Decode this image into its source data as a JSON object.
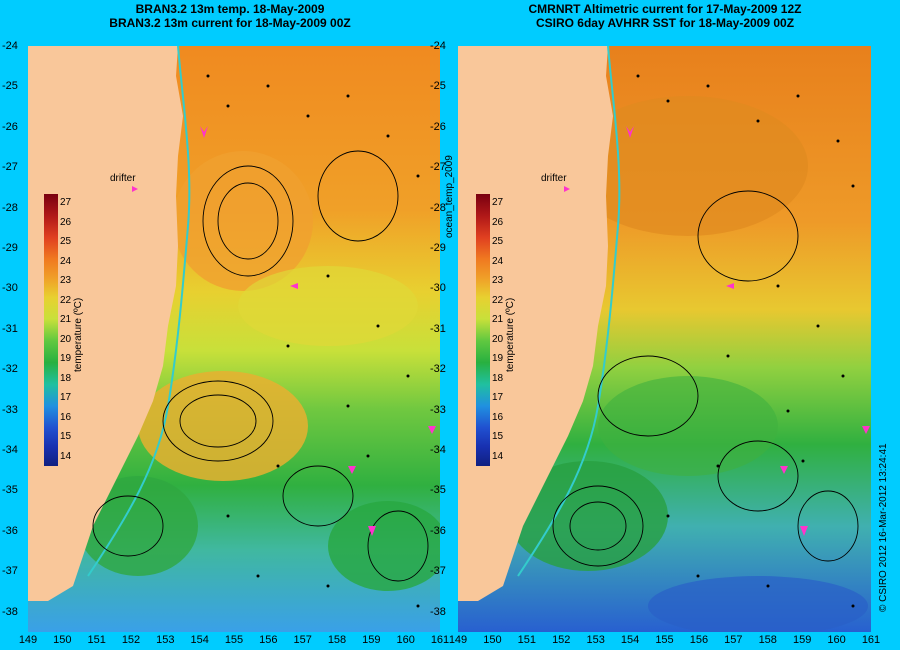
{
  "left_panel": {
    "title_line1": "BRAN3.2 13m temp. 18-May-2009",
    "title_line2": "BRAN3.2 13m current for 18-May-2009 00Z",
    "drifter_label": "drifter"
  },
  "right_panel": {
    "title_line1": "CMRNRT Altimetric current for 17-May-2009 12Z",
    "title_line2": "CSIRO 6day AVHRR SST for 18-May-2009 00Z",
    "drifter_label": "drifter"
  },
  "colorbar": {
    "title": "temperature (ºC)",
    "ticks": [
      "27",
      "26",
      "25",
      "24",
      "23",
      "22",
      "21",
      "20",
      "19",
      "18",
      "17",
      "16",
      "15",
      "14"
    ]
  },
  "axes": {
    "lat_labels": [
      "-24",
      "-25",
      "-26",
      "-27",
      "-28",
      "-29",
      "-30",
      "-31",
      "-32",
      "-33",
      "-34",
      "-35",
      "-36",
      "-37",
      "-38"
    ],
    "lon_labels_left": [
      "149",
      "150",
      "151",
      "152",
      "153",
      "154",
      "155",
      "156",
      "157",
      "158",
      "159",
      "160",
      "161"
    ],
    "lon_labels_right": [
      "149",
      "150",
      "151",
      "152",
      "153",
      "154",
      "155",
      "156",
      "157",
      "158",
      "159",
      "160",
      "161"
    ]
  },
  "side_label": "ocean_temp_2009",
  "credit": "© CSIRO 2012   16-Mar-2012 13:24:41",
  "colors": {
    "background": "#00ccff",
    "land": "#f9c79a",
    "drifter": "#ff33cc",
    "coast_current": "#33cccc"
  }
}
